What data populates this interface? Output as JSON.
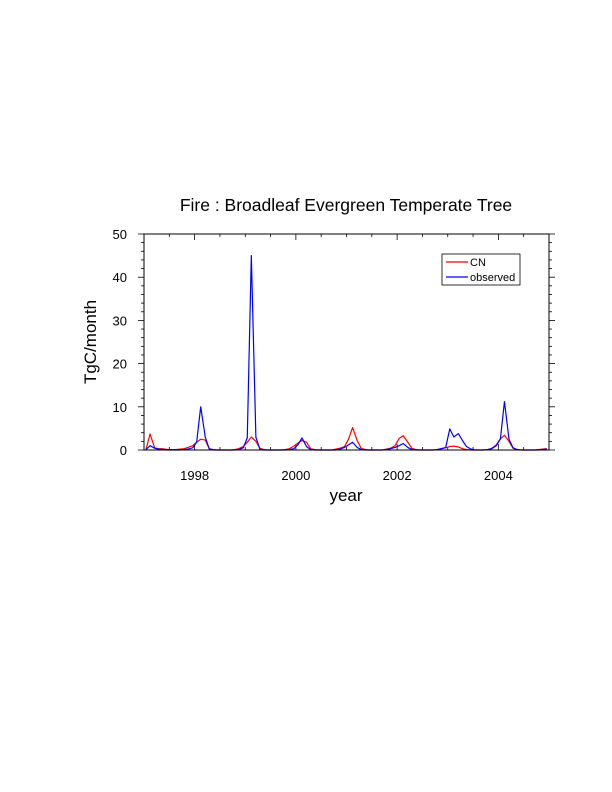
{
  "chart_data": {
    "type": "line",
    "title": "Fire : Broadleaf Evergreen Temperate Tree",
    "xlabel": "year",
    "ylabel": "TgC/month",
    "xlim": [
      1997.0,
      2005.0
    ],
    "ylim": [
      0,
      50
    ],
    "x_ticks": [
      1998,
      2000,
      2002,
      2004
    ],
    "y_ticks": [
      0,
      10,
      20,
      30,
      40,
      50
    ],
    "grid": false,
    "legend_position": "top-right",
    "x": [
      1997.04,
      1997.12,
      1997.21,
      1997.29,
      1997.37,
      1997.46,
      1997.54,
      1997.62,
      1997.71,
      1997.79,
      1997.87,
      1997.96,
      1998.04,
      1998.12,
      1998.21,
      1998.29,
      1998.37,
      1998.46,
      1998.54,
      1998.62,
      1998.71,
      1998.79,
      1998.87,
      1998.96,
      1999.04,
      1999.12,
      1999.21,
      1999.29,
      1999.37,
      1999.46,
      1999.54,
      1999.62,
      1999.71,
      1999.79,
      1999.87,
      1999.96,
      2000.04,
      2000.12,
      2000.21,
      2000.29,
      2000.37,
      2000.46,
      2000.54,
      2000.62,
      2000.71,
      2000.79,
      2000.87,
      2000.96,
      2001.04,
      2001.12,
      2001.21,
      2001.29,
      2001.37,
      2001.46,
      2001.54,
      2001.62,
      2001.71,
      2001.79,
      2001.87,
      2001.96,
      2002.04,
      2002.12,
      2002.21,
      2002.29,
      2002.37,
      2002.46,
      2002.54,
      2002.62,
      2002.71,
      2002.79,
      2002.87,
      2002.96,
      2003.04,
      2003.12,
      2003.21,
      2003.29,
      2003.37,
      2003.46,
      2003.54,
      2003.62,
      2003.71,
      2003.79,
      2003.87,
      2003.96,
      2004.04,
      2004.12,
      2004.21,
      2004.29,
      2004.37,
      2004.46,
      2004.54,
      2004.62,
      2004.71,
      2004.79,
      2004.87,
      2004.96
    ],
    "series": [
      {
        "name": "CN",
        "color": "#ff0000",
        "values": [
          0.2,
          3.7,
          0.5,
          0.3,
          0.3,
          0.1,
          0.1,
          0.1,
          0.2,
          0.3,
          0.6,
          1.0,
          1.8,
          2.5,
          2.3,
          0.3,
          0.1,
          0.0,
          0.0,
          0.0,
          0.0,
          0.1,
          0.3,
          0.8,
          1.8,
          3.0,
          2.0,
          0.4,
          0.1,
          0.0,
          0.0,
          0.0,
          0.0,
          0.1,
          0.3,
          0.9,
          1.6,
          2.2,
          1.8,
          0.3,
          0.1,
          0.0,
          0.0,
          0.0,
          0.0,
          0.2,
          0.4,
          0.8,
          2.5,
          5.2,
          2.2,
          0.4,
          0.1,
          0.0,
          0.0,
          0.0,
          0.0,
          0.2,
          0.4,
          1.0,
          2.7,
          3.3,
          1.8,
          0.4,
          0.1,
          0.0,
          0.0,
          0.0,
          0.0,
          0.1,
          0.3,
          0.5,
          0.8,
          0.9,
          0.7,
          0.3,
          0.1,
          0.0,
          0.0,
          0.0,
          0.0,
          0.1,
          0.4,
          1.2,
          2.6,
          3.4,
          2.0,
          0.4,
          0.1,
          0.0,
          0.0,
          0.0,
          0.0,
          0.1,
          0.2,
          0.3
        ]
      },
      {
        "name": "observed",
        "color": "#0000ff",
        "values": [
          0.1,
          1.0,
          0.4,
          0.2,
          0.1,
          0.0,
          0.0,
          0.0,
          0.0,
          0.1,
          0.2,
          0.5,
          1.8,
          10.0,
          3.0,
          0.2,
          0.0,
          0.0,
          0.0,
          0.0,
          0.0,
          0.0,
          0.1,
          0.5,
          2.8,
          45.0,
          3.0,
          0.1,
          0.0,
          0.0,
          0.0,
          0.0,
          0.0,
          0.0,
          0.1,
          0.3,
          1.2,
          2.8,
          0.8,
          0.1,
          0.0,
          0.0,
          0.0,
          0.0,
          0.0,
          0.0,
          0.2,
          0.6,
          1.2,
          1.8,
          0.6,
          0.1,
          0.0,
          0.0,
          0.0,
          0.0,
          0.0,
          0.1,
          0.3,
          0.6,
          1.0,
          1.5,
          0.6,
          0.1,
          0.0,
          0.0,
          0.0,
          0.0,
          0.0,
          0.1,
          0.3,
          0.6,
          4.9,
          3.0,
          3.8,
          2.2,
          0.8,
          0.2,
          0.0,
          0.0,
          0.0,
          0.1,
          0.3,
          1.0,
          2.6,
          11.2,
          2.5,
          0.5,
          0.1,
          0.0,
          0.0,
          0.0,
          0.0,
          0.0,
          0.1,
          0.2
        ]
      }
    ]
  }
}
